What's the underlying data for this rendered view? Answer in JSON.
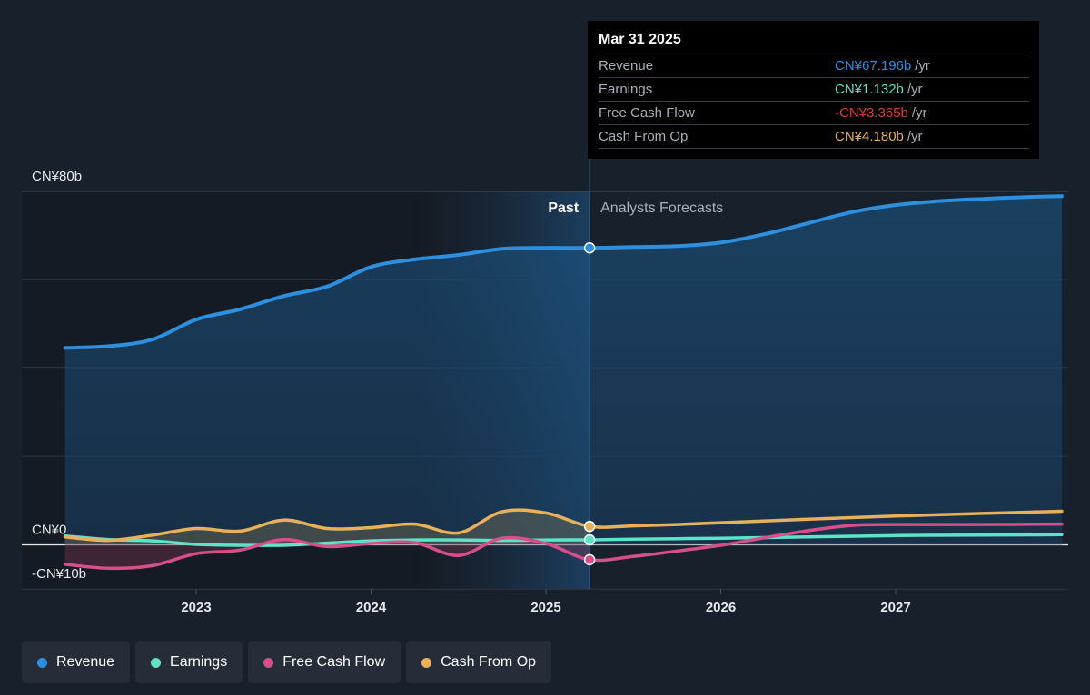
{
  "chart_data": {
    "type": "area",
    "x_ticks": [
      "2023",
      "2024",
      "2025",
      "2026",
      "2027"
    ],
    "y_ticks": [
      "CN¥80b",
      "CN¥0",
      "-CN¥10b"
    ],
    "ylim": [
      -10,
      80
    ],
    "divider_labels": {
      "past": "Past",
      "forecast": "Analysts Forecasts"
    },
    "series": [
      {
        "name": "Revenue",
        "color": "#2d8fe0",
        "points": [
          [
            2022.25,
            44.6
          ],
          [
            2022.5,
            45.0
          ],
          [
            2022.75,
            46.5
          ],
          [
            2023.0,
            51.0
          ],
          [
            2023.25,
            53.3
          ],
          [
            2023.5,
            56.3
          ],
          [
            2023.75,
            58.5
          ],
          [
            2024.0,
            62.9
          ],
          [
            2024.25,
            64.6
          ],
          [
            2024.5,
            65.6
          ],
          [
            2024.75,
            67.0
          ],
          [
            2025.0,
            67.2
          ],
          [
            2025.25,
            67.2
          ],
          [
            2025.5,
            67.4
          ],
          [
            2025.75,
            67.6
          ],
          [
            2026.0,
            68.4
          ],
          [
            2026.25,
            70.3
          ],
          [
            2026.5,
            72.8
          ],
          [
            2026.75,
            75.3
          ],
          [
            2027.0,
            76.9
          ],
          [
            2027.25,
            77.8
          ],
          [
            2027.5,
            78.3
          ],
          [
            2027.75,
            78.7
          ],
          [
            2027.95,
            78.9
          ]
        ]
      },
      {
        "name": "Earnings",
        "color": "#5de3c8",
        "points": [
          [
            2022.25,
            2.0
          ],
          [
            2022.5,
            1.2
          ],
          [
            2022.75,
            0.9
          ],
          [
            2023.0,
            0.1
          ],
          [
            2023.25,
            -0.1
          ],
          [
            2023.5,
            -0.1
          ],
          [
            2023.75,
            0.4
          ],
          [
            2024.0,
            0.9
          ],
          [
            2024.25,
            1.1
          ],
          [
            2024.5,
            1.1
          ],
          [
            2024.75,
            1.0
          ],
          [
            2025.0,
            1.1
          ],
          [
            2025.25,
            1.132
          ],
          [
            2025.5,
            1.3
          ],
          [
            2025.75,
            1.4
          ],
          [
            2026.0,
            1.5
          ],
          [
            2026.5,
            1.8
          ],
          [
            2027.0,
            2.1
          ],
          [
            2027.5,
            2.2
          ],
          [
            2027.95,
            2.3
          ]
        ]
      },
      {
        "name": "Free Cash Flow",
        "color": "#d64f8a",
        "points": [
          [
            2022.25,
            -4.4
          ],
          [
            2022.5,
            -5.3
          ],
          [
            2022.75,
            -4.7
          ],
          [
            2023.0,
            -2.0
          ],
          [
            2023.25,
            -1.2
          ],
          [
            2023.5,
            1.2
          ],
          [
            2023.75,
            -0.4
          ],
          [
            2024.0,
            0.3
          ],
          [
            2024.25,
            0.5
          ],
          [
            2024.5,
            -2.4
          ],
          [
            2024.75,
            1.5
          ],
          [
            2025.0,
            0.3
          ],
          [
            2025.25,
            -3.365
          ],
          [
            2025.5,
            -2.6
          ],
          [
            2025.75,
            -1.4
          ],
          [
            2026.0,
            -0.1
          ],
          [
            2026.25,
            1.6
          ],
          [
            2026.5,
            3.2
          ],
          [
            2026.75,
            4.4
          ],
          [
            2027.0,
            4.6
          ],
          [
            2027.5,
            4.6
          ],
          [
            2027.95,
            4.7
          ]
        ]
      },
      {
        "name": "Cash From Op",
        "color": "#e8b05a",
        "points": [
          [
            2022.25,
            1.8
          ],
          [
            2022.5,
            1.0
          ],
          [
            2022.75,
            2.2
          ],
          [
            2023.0,
            3.7
          ],
          [
            2023.25,
            3.1
          ],
          [
            2023.5,
            5.6
          ],
          [
            2023.75,
            3.7
          ],
          [
            2024.0,
            3.9
          ],
          [
            2024.25,
            4.7
          ],
          [
            2024.5,
            2.7
          ],
          [
            2024.75,
            7.5
          ],
          [
            2025.0,
            7.2
          ],
          [
            2025.25,
            4.18
          ],
          [
            2025.5,
            4.3
          ],
          [
            2025.75,
            4.6
          ],
          [
            2026.0,
            5.0
          ],
          [
            2026.5,
            5.8
          ],
          [
            2027.0,
            6.5
          ],
          [
            2027.5,
            7.1
          ],
          [
            2027.95,
            7.6
          ]
        ]
      }
    ],
    "past_end": 2025.25,
    "highlight_start": 2024.25
  },
  "tooltip": {
    "date": "Mar 31 2025",
    "rows": [
      {
        "label": "Revenue",
        "value": "CN¥67.196b",
        "unit": "/yr",
        "color": "#2d8fe0"
      },
      {
        "label": "Earnings",
        "value": "CN¥1.132b",
        "unit": "/yr",
        "color": "#5de3c8"
      },
      {
        "label": "Free Cash Flow",
        "value": "-CN¥3.365b",
        "unit": "/yr",
        "color": "#e03c3c"
      },
      {
        "label": "Cash From Op",
        "value": "CN¥4.180b",
        "unit": "/yr",
        "color": "#e8b05a"
      }
    ]
  },
  "legend": [
    {
      "label": "Revenue",
      "color": "#2d8fe0"
    },
    {
      "label": "Earnings",
      "color": "#5de3c8"
    },
    {
      "label": "Free Cash Flow",
      "color": "#d64f8a"
    },
    {
      "label": "Cash From Op",
      "color": "#e8b05a"
    }
  ]
}
